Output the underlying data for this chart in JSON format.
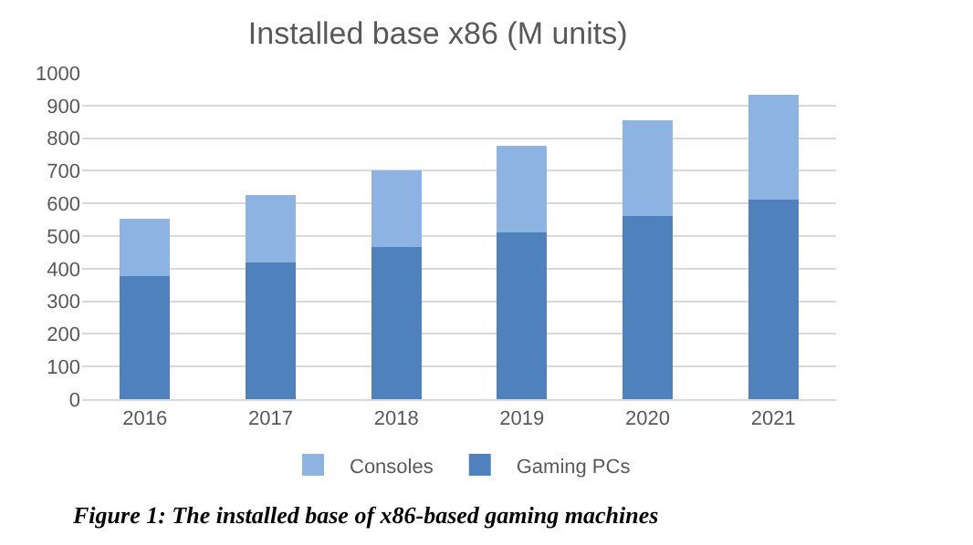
{
  "chart_data": {
    "type": "bar",
    "title": "Installed base x86 (M units)",
    "categories": [
      "2016",
      "2017",
      "2018",
      "2019",
      "2020",
      "2021"
    ],
    "series": [
      {
        "name": "Gaming PCs",
        "color": "#4f81bd",
        "values": [
          376,
          420,
          466,
          512,
          562,
          612
        ]
      },
      {
        "name": "Consoles",
        "color": "#8db3e2",
        "values": [
          178,
          206,
          234,
          264,
          292,
          322
        ]
      }
    ],
    "stacked": true,
    "ylim": [
      0,
      1000
    ],
    "yticks": [
      0,
      100,
      200,
      300,
      400,
      500,
      600,
      700,
      800,
      900,
      1000
    ],
    "grid": "y",
    "legend": "bottom",
    "annotations": [
      "Figure 1: The installed base of x86-based gaming machines"
    ]
  }
}
